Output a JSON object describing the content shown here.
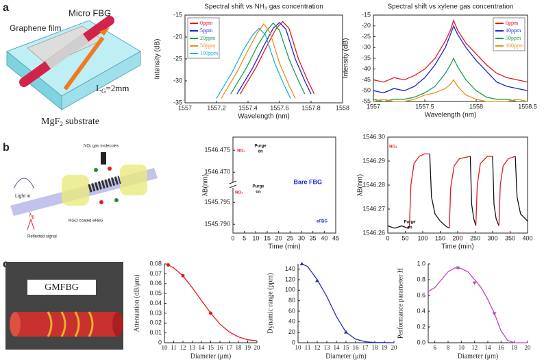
{
  "panel_labels": [
    "a",
    "b",
    "c"
  ],
  "diagram_a": {
    "micro_fbg": "Micro FBG",
    "graphene": "Graphene film",
    "length": "L",
    "length_sub": "G",
    "length_val": "=2mm",
    "substrate": "MgF",
    "substrate_sub": "2",
    "substrate_rest": " substrate"
  },
  "diagram_b": {
    "molecules": "NO₂ gas molecules",
    "light_in": "Light in",
    "lambda": "λ",
    "lambda_sub": "B",
    "coated": "RGO coated eFBG",
    "reflected": "Reflected signal"
  },
  "diagram_c": {
    "label": "GMFBG"
  },
  "chart_data": [
    {
      "type": "line",
      "title": "Spectral shift vs NH₃ gas concentration",
      "xlabel": "Wavelength (nm)",
      "ylabel": "Intensity (dB)",
      "xlim": [
        1557,
        1558
      ],
      "xticks": [
        1557,
        1557.2,
        1557.4,
        1557.6,
        1557.8,
        1558
      ],
      "ylim": [
        -35,
        -15
      ],
      "yticks": [
        -35,
        -30,
        -25,
        -20,
        -15
      ],
      "legend": "upper left",
      "series": [
        {
          "name": "0ppm",
          "color": "#e8141c",
          "x": [
            1557.35,
            1557.45,
            1557.52,
            1557.58,
            1557.62,
            1557.66,
            1557.72,
            1557.78,
            1557.82
          ],
          "values": [
            -33,
            -27,
            -22,
            -18,
            -16.5,
            -18,
            -25,
            -30,
            -33
          ]
        },
        {
          "name": "5ppm",
          "color": "#1a23d6",
          "x": [
            1557.33,
            1557.43,
            1557.5,
            1557.56,
            1557.6,
            1557.64,
            1557.7,
            1557.76,
            1557.8
          ],
          "values": [
            -33,
            -27,
            -22,
            -18,
            -16.7,
            -18.2,
            -25,
            -30,
            -33
          ]
        },
        {
          "name": "20ppm",
          "color": "#18a04a",
          "x": [
            1557.29,
            1557.39,
            1557.46,
            1557.52,
            1557.56,
            1557.6,
            1557.66,
            1557.72,
            1557.76
          ],
          "values": [
            -33,
            -27,
            -22,
            -18.5,
            -16.8,
            -18.5,
            -25,
            -30,
            -33
          ]
        },
        {
          "name": "50ppm",
          "color": "#f08c1c",
          "x": [
            1557.23,
            1557.33,
            1557.4,
            1557.46,
            1557.5,
            1557.54,
            1557.6,
            1557.66,
            1557.7
          ],
          "values": [
            -34,
            -28,
            -23,
            -19,
            -17,
            -19,
            -26,
            -31,
            -34
          ]
        },
        {
          "name": "100ppm",
          "color": "#1cb4d8",
          "x": [
            1557.2,
            1557.3,
            1557.37,
            1557.43,
            1557.47,
            1557.51,
            1557.57,
            1557.63,
            1557.67
          ],
          "values": [
            -34,
            -28,
            -23,
            -19.5,
            -18,
            -19.5,
            -26,
            -31,
            -34
          ]
        }
      ]
    },
    {
      "type": "line",
      "title": "Spectral shift vs xylene gas concentration",
      "xlabel": "Wavelength (nm)",
      "ylabel": "Intensity (dB)",
      "xlim": [
        1557,
        1558.5
      ],
      "xticks": [
        1557,
        1557.5,
        1558,
        1558.5
      ],
      "ylim": [
        -55,
        -15
      ],
      "yticks": [
        -55,
        -50,
        -45,
        -40,
        -35,
        -30,
        -25,
        -20,
        -15
      ],
      "legend": "upper right",
      "series": [
        {
          "name": "0ppm",
          "color": "#e8141c",
          "x": [
            1557,
            1557.1,
            1557.2,
            1557.3,
            1557.4,
            1557.5,
            1557.6,
            1557.7,
            1557.75,
            1557.78,
            1557.82,
            1557.9,
            1558,
            1558.1,
            1558.2,
            1558.3,
            1558.4,
            1558.5
          ],
          "values": [
            -45,
            -46,
            -44,
            -45,
            -43,
            -40,
            -35,
            -27,
            -22,
            -17.5,
            -22,
            -28,
            -33,
            -38,
            -42,
            -44,
            -45,
            -46
          ]
        },
        {
          "name": "10ppm",
          "color": "#1a23d6",
          "x": [
            1557,
            1557.1,
            1557.2,
            1557.3,
            1557.4,
            1557.5,
            1557.6,
            1557.7,
            1557.75,
            1557.78,
            1557.82,
            1557.9,
            1558,
            1558.1,
            1558.2,
            1558.3,
            1558.4,
            1558.5
          ],
          "values": [
            -50,
            -51,
            -49,
            -50,
            -48,
            -44,
            -38,
            -30,
            -24,
            -20,
            -24,
            -30,
            -36,
            -41,
            -46,
            -48,
            -49,
            -50
          ]
        },
        {
          "name": "50ppm",
          "color": "#18a04a",
          "x": [
            1557,
            1557.1,
            1557.2,
            1557.3,
            1557.4,
            1557.5,
            1557.6,
            1557.7,
            1557.75,
            1557.78,
            1557.82,
            1557.9,
            1558,
            1558.1,
            1558.2,
            1558.3,
            1558.4,
            1558.5
          ],
          "values": [
            -54,
            -55,
            -54,
            -54,
            -53,
            -51,
            -48,
            -42,
            -38,
            -35,
            -39,
            -45,
            -50,
            -53,
            -54,
            -54,
            -55,
            -55
          ]
        },
        {
          "name": "100ppm",
          "color": "#f08c1c",
          "x": [
            1557,
            1557.1,
            1557.2,
            1557.3,
            1557.4,
            1557.5,
            1557.6,
            1557.7,
            1557.75,
            1557.78,
            1557.82,
            1557.9,
            1558,
            1558.1,
            1558.2,
            1558.3,
            1558.4,
            1558.5
          ],
          "values": [
            -55,
            -54,
            -55,
            -55,
            -54,
            -52,
            -51,
            -49,
            -47,
            -45,
            -48,
            -52,
            -54,
            -55,
            -55,
            -55,
            -54,
            -55
          ]
        }
      ]
    },
    {
      "type": "broken",
      "xlabel": "Time (min)",
      "ylabel": "λB(nm)",
      "xlim": [
        0,
        45
      ],
      "xticks": [
        0,
        5,
        10,
        15,
        20,
        25,
        30,
        35,
        40,
        45
      ],
      "y_segments": [
        {
          "ylim": [
            1546.468,
            1546.478
          ],
          "yticks": [
            {
              "value": 1546.47,
              "label": "1546.470"
            },
            1546.475
          ]
        },
        {
          "ylim": [
            1545.788,
            1545.798
          ],
          "yticks": [
            {
              "value": 1545.79,
              "label": "1545.790"
            },
            1545.795
          ]
        }
      ],
      "series": [],
      "annotations": [
        {
          "text": "NO₂",
          "color": "#e8141c"
        },
        {
          "text": "Purge",
          "color": "#111"
        },
        {
          "text": "on",
          "color": "#111"
        },
        {
          "text": "NO₂",
          "color": "#e8141c"
        },
        {
          "text": "Purge",
          "color": "#111"
        },
        {
          "text": "on",
          "color": "#111"
        },
        {
          "text": "Bare FBG",
          "color": "#1a23d6"
        },
        {
          "text": "eFBG",
          "color": "#1a23d6"
        }
      ]
    },
    {
      "type": "line",
      "xlabel": "Time (min)",
      "ylabel": "λB(nm)",
      "xlim": [
        0,
        400
      ],
      "xticks": [
        0,
        50,
        100,
        150,
        200,
        250,
        300,
        350,
        400
      ],
      "ylim": [
        1546.26,
        1546.3
      ],
      "yticks": [
        1546.26,
        1546.27,
        1546.28,
        1546.29,
        {
          "value": 1546.3,
          "label": "1546.30"
        }
      ],
      "series": [
        {
          "color": "#111111",
          "x": [
            0,
            20,
            40,
            58,
            62,
            null,
            120,
            125,
            135,
            150,
            165,
            176,
            null,
            236,
            240,
            246,
            252,
            null,
            300,
            304,
            310,
            318,
            null,
            365,
            370,
            380,
            400
          ],
          "values": [
            1546.263,
            1546.262,
            1546.263,
            1546.262,
            1546.263,
            null,
            1546.293,
            1546.275,
            1546.268,
            1546.265,
            1546.263,
            1546.262,
            null,
            1546.292,
            1546.272,
            1546.266,
            1546.263,
            null,
            1546.292,
            1546.272,
            1546.266,
            1546.263,
            null,
            1546.292,
            1546.275,
            1546.268,
            1546.265
          ]
        },
        {
          "color": "#e8141c",
          "x": [
            62,
            66,
            75,
            90,
            105,
            120,
            null,
            176,
            180,
            190,
            205,
            236,
            null,
            252,
            256,
            265,
            285,
            300,
            null,
            318,
            322,
            330,
            345,
            365
          ],
          "values": [
            1546.263,
            1546.28,
            1546.289,
            1546.292,
            1546.293,
            1546.293,
            null,
            1546.262,
            1546.279,
            1546.288,
            1546.291,
            1546.292,
            null,
            1546.263,
            1546.28,
            1546.289,
            1546.292,
            1546.292,
            null,
            1546.263,
            1546.28,
            1546.288,
            1546.291,
            1546.292
          ]
        }
      ],
      "annotations": [
        {
          "text": "NO₂",
          "color": "#e8141c"
        },
        {
          "text": "Purge",
          "color": "#111"
        },
        {
          "text": "on",
          "color": "#111"
        }
      ]
    },
    {
      "type": "line",
      "xlabel": "Diameter (μm)",
      "ylabel": "Attenuation (dB/μm)",
      "xlim": [
        10,
        20
      ],
      "xticks": [
        10,
        11,
        12,
        13,
        14,
        15,
        16,
        17,
        18,
        19,
        20
      ],
      "ylim": [
        0,
        0.08
      ],
      "yticks": [
        0,
        0.01,
        0.02,
        0.03,
        0.04,
        0.05,
        0.06,
        0.07,
        0.08
      ],
      "series": [
        {
          "color": "#e8141c",
          "x": [
            10.4,
            11,
            12,
            13,
            14,
            15,
            16,
            17,
            18,
            19,
            20
          ],
          "values": [
            0.079,
            0.076,
            0.068,
            0.056,
            0.043,
            0.03,
            0.019,
            0.011,
            0.006,
            0.003,
            0.002
          ]
        },
        {
          "color": "#e8141c",
          "marker": "circle",
          "x": [
            10.4,
            12,
            15
          ],
          "values": [
            0.079,
            0.068,
            0.03
          ]
        }
      ]
    },
    {
      "type": "line",
      "xlabel": "Diameter (μm)",
      "ylabel": "Dynamic range (ppm)",
      "xlim": [
        10,
        20
      ],
      "xticks": [
        10,
        11,
        12,
        13,
        14,
        15,
        16,
        17,
        18,
        19,
        20
      ],
      "ylim": [
        0,
        150
      ],
      "yticks": [
        0,
        20,
        40,
        60,
        80,
        100,
        120,
        140
      ],
      "series": [
        {
          "color": "#2a2ab8",
          "x": [
            10.4,
            11,
            12,
            13,
            14,
            15,
            16,
            17,
            18,
            19,
            20
          ],
          "values": [
            150,
            145,
            120,
            88,
            50,
            20,
            7,
            2,
            0.5,
            0.2,
            0
          ]
        },
        {
          "color": "#2a2ab8",
          "marker": "triangle-up",
          "x": [
            10.4,
            12,
            15
          ],
          "values": [
            150,
            118,
            20
          ]
        }
      ]
    },
    {
      "type": "line",
      "xlabel": "Diameter (μm)",
      "ylabel": "Performance parameter H",
      "xlim": [
        5,
        20
      ],
      "xticks": [
        6,
        8,
        10,
        12,
        14,
        16,
        18,
        20
      ],
      "ylim": [
        0,
        1
      ],
      "yticks": [
        {
          "value": 0,
          "label": "0.0"
        },
        0.2,
        0.4,
        0.6,
        0.8,
        {
          "value": 1,
          "label": "1.0"
        }
      ],
      "series": [
        {
          "color": "#c040c0",
          "x": [
            5,
            6,
            7,
            8,
            9,
            10,
            11,
            12,
            13,
            14,
            15,
            16,
            17,
            18,
            20
          ],
          "values": [
            0.65,
            0.7,
            0.8,
            0.9,
            0.95,
            0.94,
            0.9,
            0.8,
            0.7,
            0.55,
            0.37,
            0.15,
            0.03,
            0,
            0
          ]
        },
        {
          "color": "#c040c0",
          "marker": "triangle-down",
          "x": [
            9.5,
            12,
            15
          ],
          "values": [
            0.95,
            0.76,
            0.37
          ]
        }
      ]
    }
  ]
}
